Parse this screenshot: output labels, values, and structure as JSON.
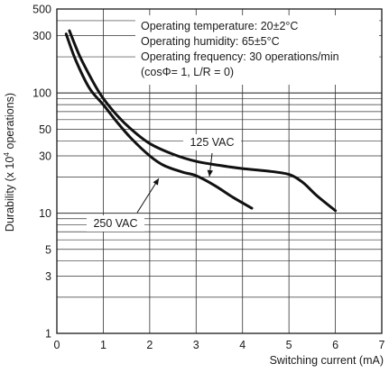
{
  "chart_data": {
    "type": "line",
    "xlabel": "Switching current (mA)",
    "ylabel": "Durability (x 10",
    "ylabel_sup": "4",
    "ylabel_suffix": " operations)",
    "xlim": [
      0,
      7
    ],
    "ylim": [
      1,
      500
    ],
    "y_scale": "log",
    "grid": true,
    "x_ticks": [
      "0",
      "1",
      "2",
      "3",
      "4",
      "5",
      "6",
      "7"
    ],
    "y_ticks": [
      {
        "value": 1,
        "label": "1"
      },
      {
        "value": 3,
        "label": "3"
      },
      {
        "value": 5,
        "label": "5"
      },
      {
        "value": 10,
        "label": "10"
      },
      {
        "value": 30,
        "label": "30"
      },
      {
        "value": 50,
        "label": "50"
      },
      {
        "value": 100,
        "label": "100"
      },
      {
        "value": 300,
        "label": "300"
      },
      {
        "value": 500,
        "label": "500"
      }
    ],
    "annotations": [
      "Operating temperature: 20±2°C",
      "Operating humidity: 65±5°C",
      "Operating frequency: 30 operations/min",
      "(cosΦ= 1, L/R = 0)"
    ],
    "series": [
      {
        "name": "125 VAC",
        "x": [
          0.27,
          0.5,
          0.8,
          1.0,
          1.3,
          1.6,
          2.0,
          2.5,
          3.0,
          3.5,
          4.0,
          4.5,
          5.0,
          5.3,
          5.6,
          6.0
        ],
        "y": [
          330,
          200,
          120,
          90,
          65,
          50,
          38,
          31,
          27,
          25,
          23.5,
          22.5,
          21,
          18,
          14,
          10.5
        ]
      },
      {
        "name": "250 VAC",
        "x": [
          0.2,
          0.4,
          0.7,
          1.0,
          1.3,
          1.6,
          2.0,
          2.3,
          2.7,
          3.0,
          3.4,
          3.8,
          4.2
        ],
        "y": [
          310,
          190,
          110,
          80,
          57,
          42,
          30,
          25,
          22,
          20.5,
          17,
          13.5,
          11
        ]
      }
    ]
  }
}
